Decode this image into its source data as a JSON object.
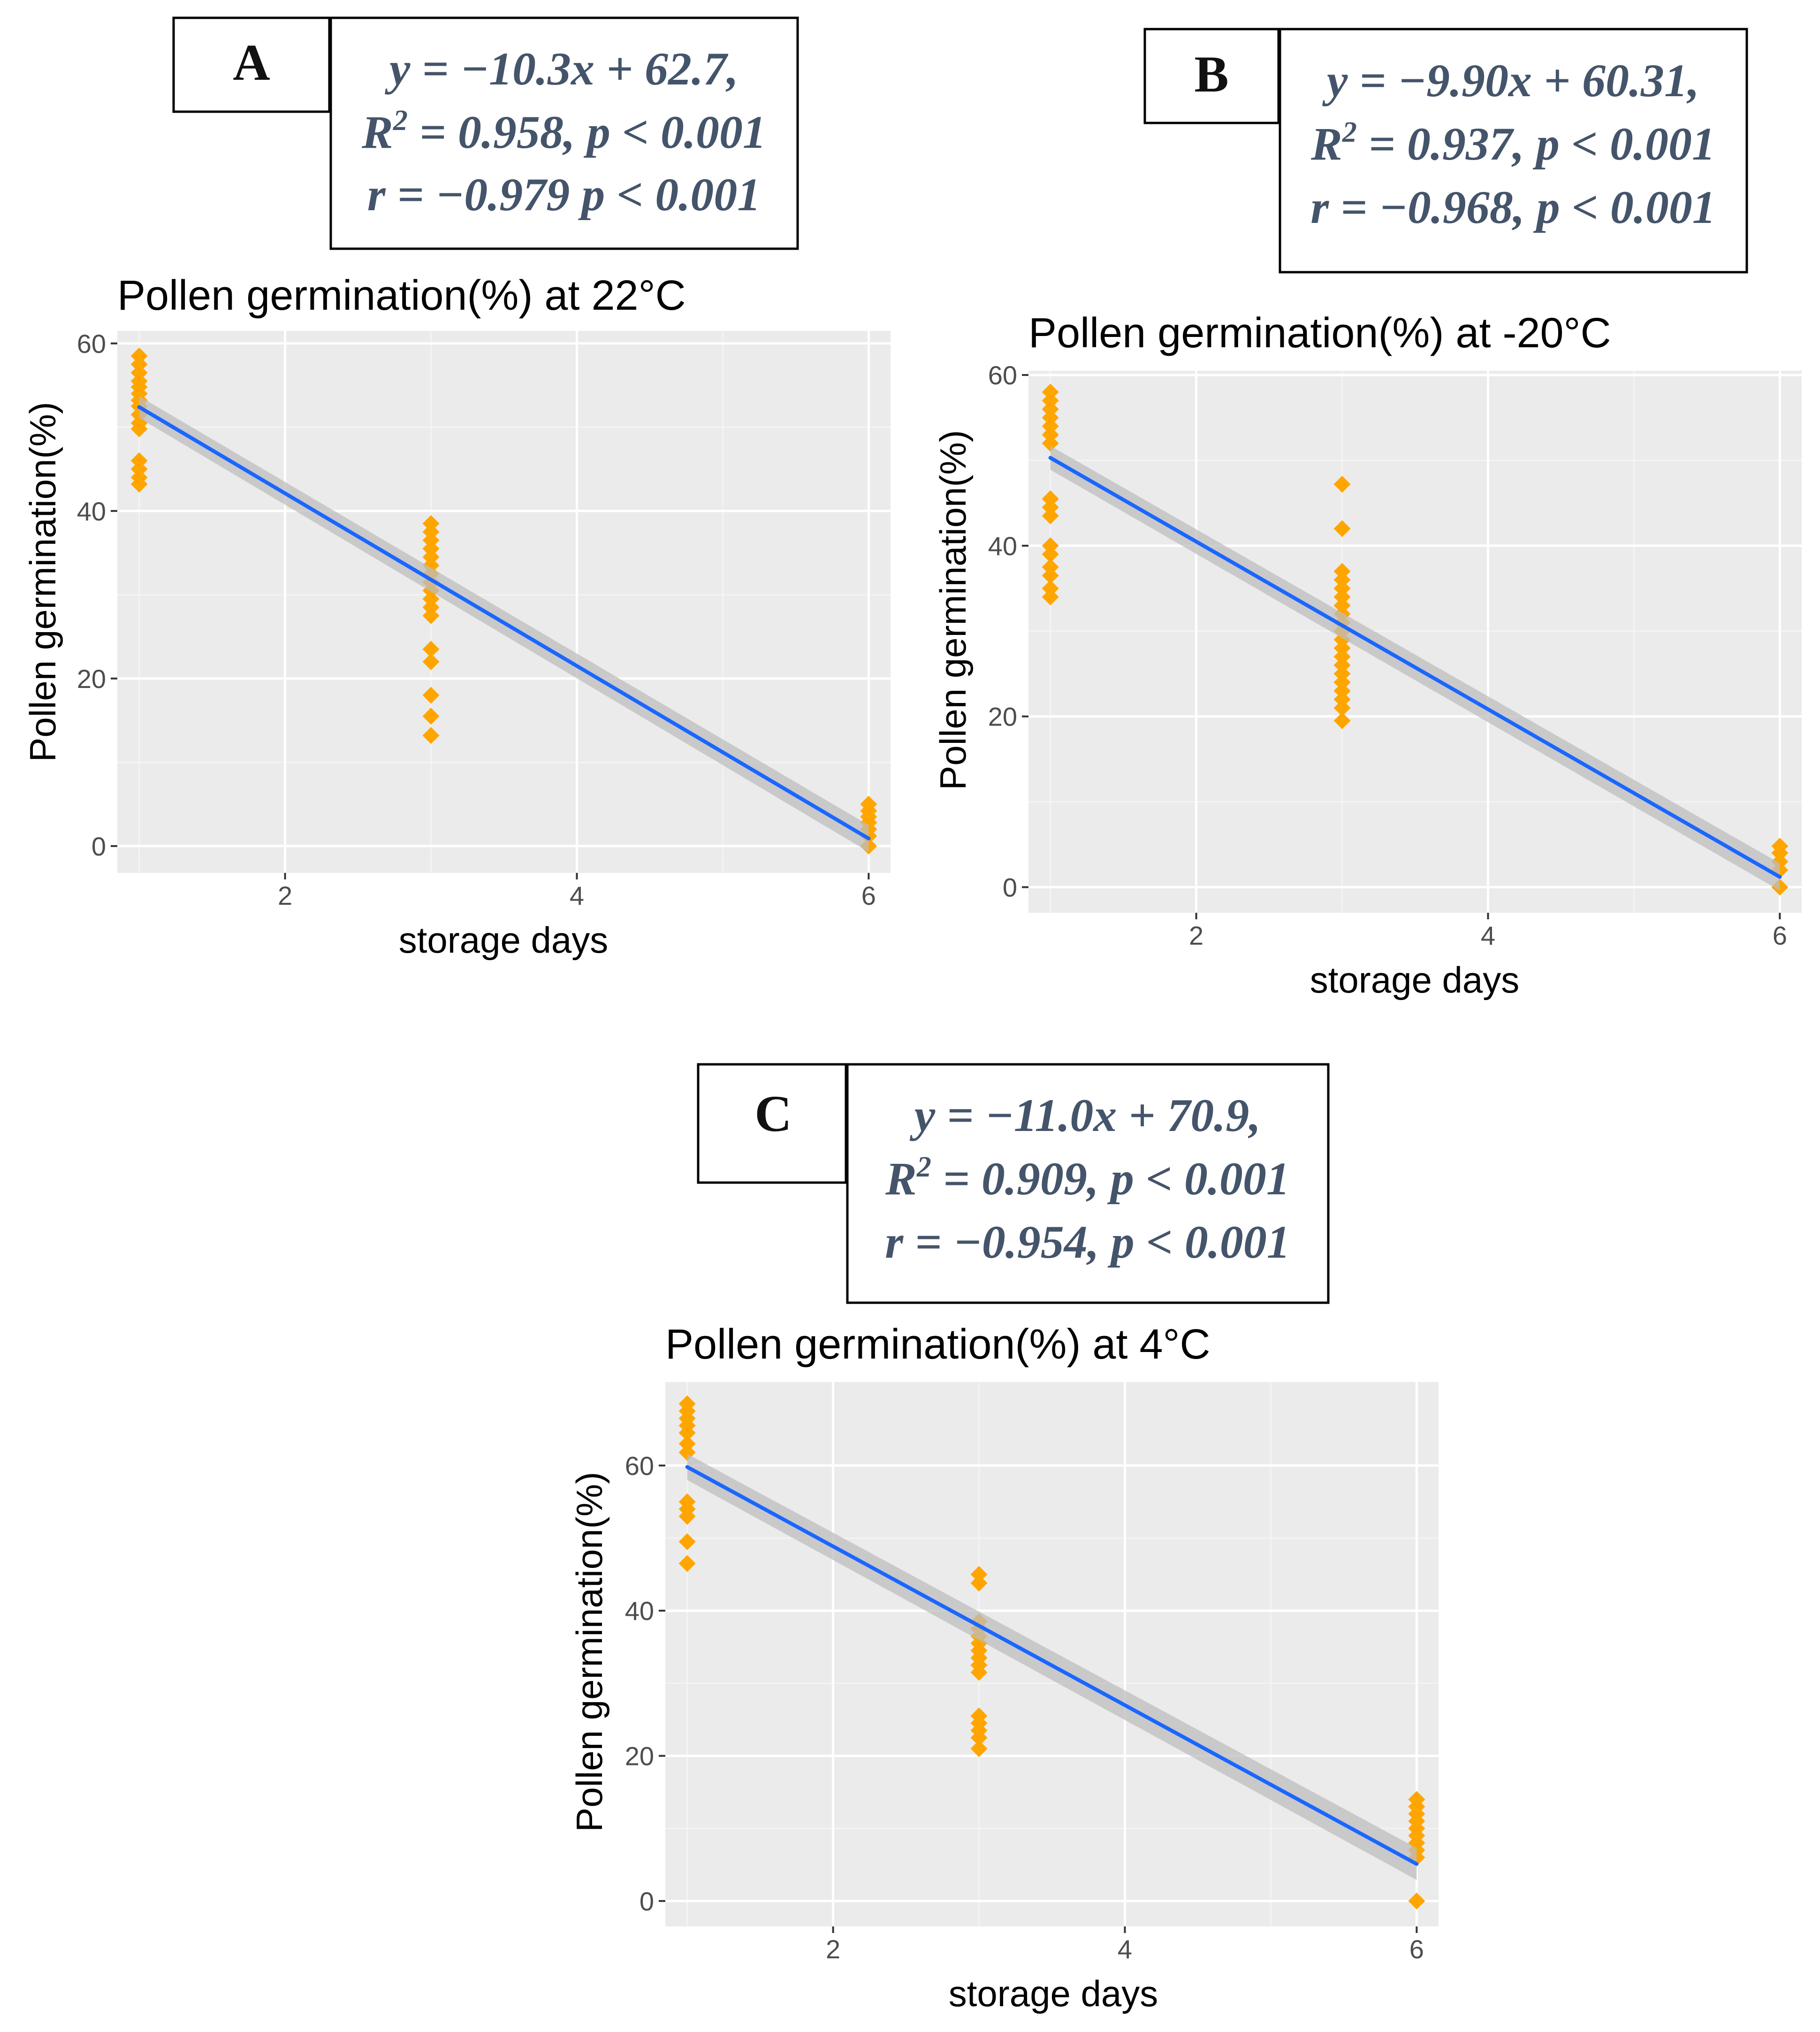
{
  "colors": {
    "panel_background": "#ebebeb",
    "grid_major": "#ffffff",
    "grid_minor": "#f5f5f5",
    "points": "#ffa500",
    "fit_line": "#1a66ff",
    "confidence_band": "#bdbdbd",
    "annotation_text": "#44546a"
  },
  "icons": {
    "points": "diamond-marker"
  },
  "panels": [
    {
      "letter": "A",
      "equation": "y = −10.3x + 62.7,",
      "r2_symbol": "R",
      "r2_exp": "2",
      "r2_rest": " = 0.958, p < 0.001",
      "correlation": "r = −0.979 p < 0.001"
    },
    {
      "letter": "B",
      "equation": "y = −9.90x + 60.31,",
      "r2_symbol": "R",
      "r2_exp": "2",
      "r2_rest": " = 0.937, p < 0.001",
      "correlation": "r = −0.968, p < 0.001"
    },
    {
      "letter": "C",
      "equation": "y = −11.0x + 70.9,",
      "r2_symbol": "R",
      "r2_exp": "2",
      "r2_rest": " = 0.909, p < 0.001",
      "correlation": "r = −0.954, p < 0.001"
    }
  ],
  "chart_data": [
    {
      "type": "scatter",
      "title": "Pollen germination(%) at 22°C",
      "xlabel": "storage days",
      "ylabel": "Pollen germination(%)",
      "xlim": [
        0.85,
        6.15
      ],
      "ylim": [
        -3.2,
        61.5
      ],
      "xticks": [
        2,
        4,
        6
      ],
      "yticks": [
        0,
        20,
        40,
        60
      ],
      "grid": true,
      "points": [
        {
          "x": 1,
          "y": [
            58.5,
            57.5,
            56.5,
            55.5,
            54.8,
            54,
            53.2,
            52.5,
            51.5,
            50.5,
            49.8,
            46,
            45,
            44,
            43.2
          ]
        },
        {
          "x": 3,
          "y": [
            38.5,
            37.5,
            36.5,
            35.5,
            34.5,
            33.5,
            32.5,
            31.5,
            30.5,
            29.5,
            28.5,
            27.5,
            23.5,
            22,
            18,
            15.5,
            13.2
          ]
        },
        {
          "x": 6,
          "y": [
            5,
            4.2,
            3.5,
            2.8,
            2,
            1.2,
            0
          ]
        }
      ],
      "fit": {
        "x": [
          1,
          6
        ],
        "y": [
          52.4,
          0.9
        ],
        "band_halfwidth": [
          1.3,
          1.6
        ]
      }
    },
    {
      "type": "scatter",
      "title": "Pollen germination(%) at -20°C",
      "xlabel": "storage days",
      "ylabel": "Pollen germination(%)",
      "xlim": [
        0.85,
        6.15
      ],
      "ylim": [
        -3.0,
        60.5
      ],
      "xticks": [
        2,
        4,
        6
      ],
      "yticks": [
        0,
        20,
        40,
        60
      ],
      "grid": true,
      "points": [
        {
          "x": 1,
          "y": [
            58,
            57,
            56,
            55,
            54,
            53,
            52,
            45.5,
            44.5,
            43.5,
            40,
            39,
            37.5,
            36.5,
            35,
            34
          ]
        },
        {
          "x": 3,
          "y": [
            47.2,
            42,
            37,
            36,
            35,
            34,
            33,
            32,
            31,
            30,
            29,
            28,
            27,
            26,
            25,
            24,
            23,
            22,
            21,
            19.5
          ]
        },
        {
          "x": 6,
          "y": [
            4.8,
            4,
            3,
            2,
            0
          ]
        }
      ],
      "fit": {
        "x": [
          1,
          6
        ],
        "y": [
          50.3,
          1.2
        ],
        "band_halfwidth": [
          1.4,
          1.6
        ]
      }
    },
    {
      "type": "scatter",
      "title": "Pollen germination(%) at 4°C",
      "xlabel": "storage days",
      "ylabel": "Pollen germination(%)",
      "xlim": [
        0.85,
        6.15
      ],
      "ylim": [
        -3.5,
        71.5
      ],
      "xticks": [
        2,
        4,
        6
      ],
      "yticks": [
        0,
        20,
        40,
        60
      ],
      "grid": true,
      "points": [
        {
          "x": 1,
          "y": [
            68.5,
            67.5,
            66.5,
            65.5,
            64.5,
            63,
            61.8,
            55,
            54,
            53,
            49.5,
            46.5
          ]
        },
        {
          "x": 3,
          "y": [
            45,
            43.8,
            38.5,
            37.5,
            36.5,
            35.5,
            34.5,
            33.5,
            32.5,
            31.5,
            25.5,
            24.5,
            23.5,
            22.5,
            21
          ]
        },
        {
          "x": 6,
          "y": [
            14,
            13,
            12,
            11,
            10,
            9,
            8,
            7,
            6,
            0
          ]
        }
      ],
      "fit": {
        "x": [
          1,
          6
        ],
        "y": [
          59.8,
          5.1
        ],
        "band_halfwidth": [
          1.8,
          2.2
        ]
      }
    }
  ]
}
